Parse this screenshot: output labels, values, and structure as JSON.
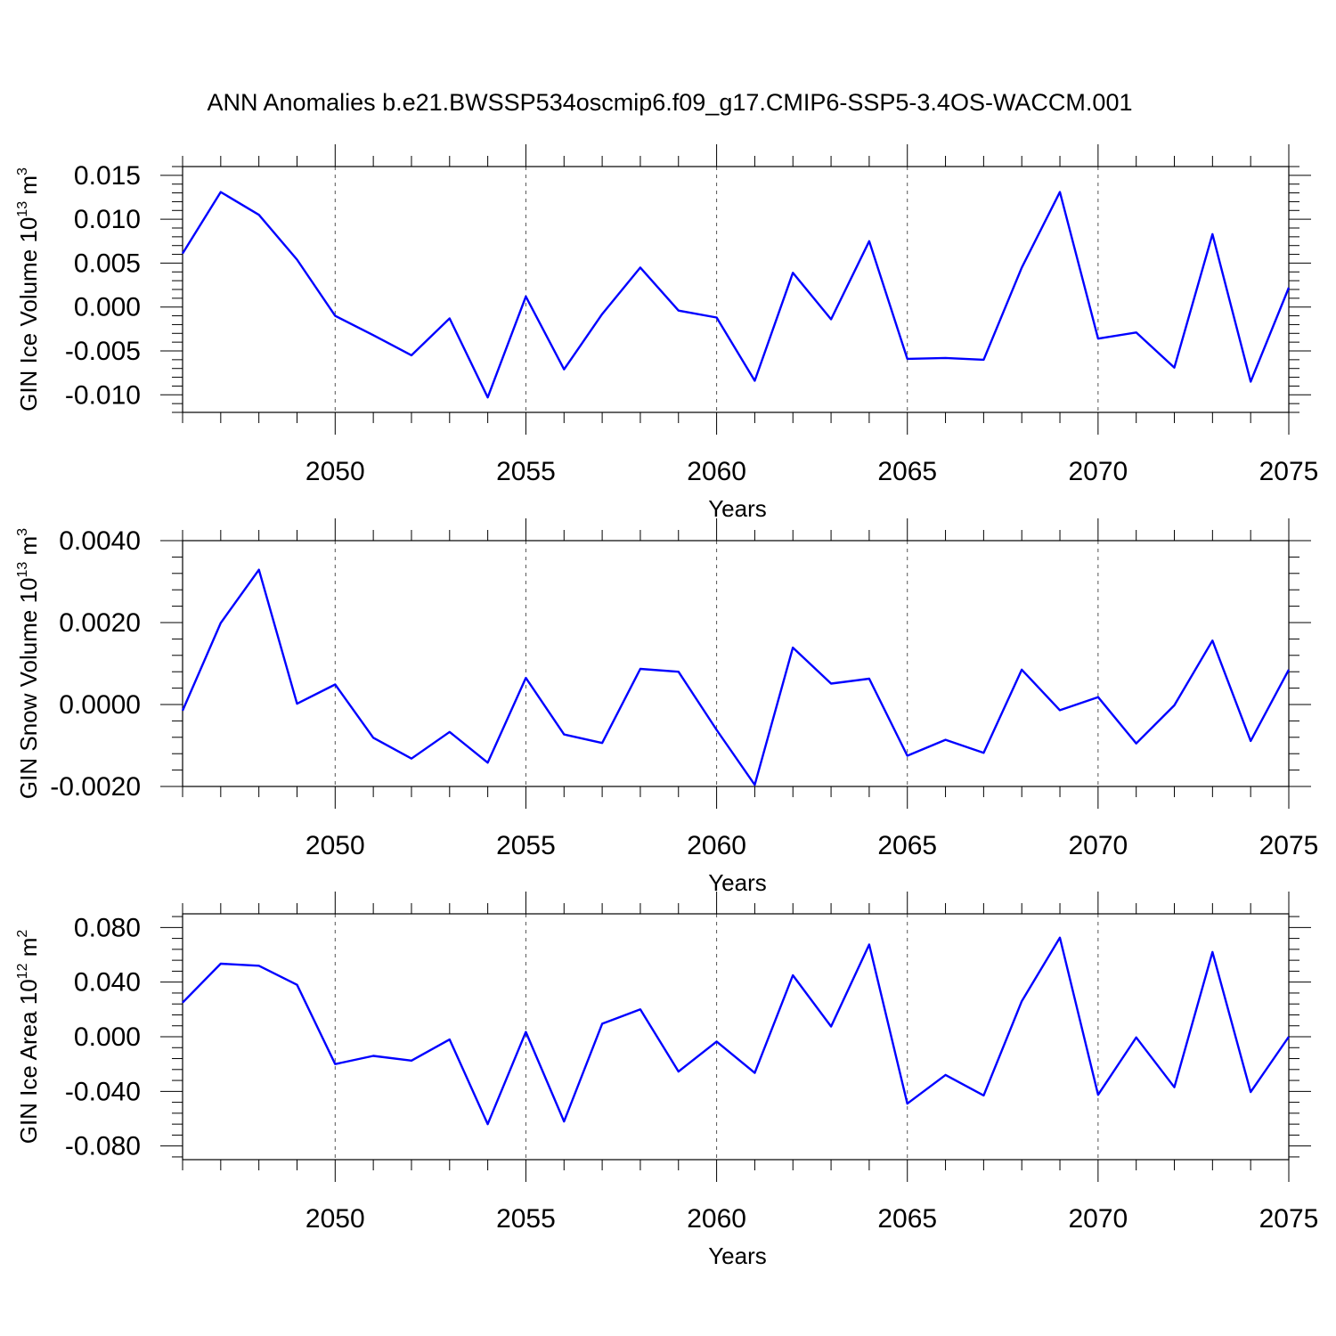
{
  "title": "ANN Anomalies b.e21.BWSSP534oscmip6.f09_g17.CMIP6-SSP5-3.4OS-WACCM.001",
  "line_color": "#0000ff",
  "chart_data": [
    {
      "type": "line",
      "xlabel": "Years",
      "ylabel": {
        "main": "GIN Ice Volume 10",
        "exp": "13",
        "unit": " m",
        "unit_exp": "3"
      },
      "xlim": [
        2046,
        2075
      ],
      "ylim": [
        -0.012,
        0.016
      ],
      "x_ticks": [
        2050,
        2055,
        2060,
        2065,
        2070,
        2075
      ],
      "y_ticks": [
        -0.01,
        -0.005,
        0.0,
        0.005,
        0.01,
        0.015
      ],
      "y_tick_labels": [
        "-0.010",
        "-0.005",
        "0.000",
        "0.005",
        "0.010",
        "0.015"
      ],
      "y_minor_step": 0.001,
      "grid": "vertical dashed at major x ticks",
      "x": [
        2046,
        2047,
        2048,
        2049,
        2050,
        2051,
        2052,
        2053,
        2054,
        2055,
        2056,
        2057,
        2058,
        2059,
        2060,
        2061,
        2062,
        2063,
        2064,
        2065,
        2066,
        2067,
        2068,
        2069,
        2070,
        2071,
        2072,
        2073,
        2074,
        2075
      ],
      "values": [
        0.0061,
        0.0131,
        0.0105,
        0.0054,
        -0.001,
        -0.0032,
        -0.0055,
        -0.0013,
        -0.0103,
        0.0012,
        -0.0071,
        -0.0008,
        0.0045,
        -0.0004,
        -0.0012,
        -0.0084,
        0.0039,
        -0.0014,
        0.0075,
        -0.0059,
        -0.0058,
        -0.006,
        0.0045,
        0.0131,
        -0.0036,
        -0.0029,
        -0.0069,
        0.0083,
        -0.0085,
        0.0022
      ]
    },
    {
      "type": "line",
      "xlabel": "Years",
      "ylabel": {
        "main": "GIN Snow Volume 10",
        "exp": "13",
        "unit": " m",
        "unit_exp": "3"
      },
      "xlim": [
        2046,
        2075
      ],
      "ylim": [
        -0.002,
        0.004
      ],
      "x_ticks": [
        2050,
        2055,
        2060,
        2065,
        2070,
        2075
      ],
      "y_ticks": [
        -0.002,
        0.0,
        0.002,
        0.004
      ],
      "y_tick_labels": [
        "-0.0020",
        "0.0000",
        "0.0020",
        "0.0040"
      ],
      "y_minor_step": 0.0004,
      "grid": "vertical dashed at major x ticks",
      "x": [
        2046,
        2047,
        2048,
        2049,
        2050,
        2051,
        2052,
        2053,
        2054,
        2055,
        2056,
        2057,
        2058,
        2059,
        2060,
        2061,
        2062,
        2063,
        2064,
        2065,
        2066,
        2067,
        2068,
        2069,
        2070,
        2071,
        2072,
        2073,
        2074,
        2075
      ],
      "values": [
        -0.00015,
        0.00199,
        0.00329,
        2e-05,
        0.00049,
        -0.00081,
        -0.00132,
        -0.00067,
        -0.00142,
        0.00065,
        -0.00073,
        -0.00094,
        0.00087,
        0.0008,
        -0.00062,
        -0.00196,
        0.00139,
        0.00051,
        0.00063,
        -0.00125,
        -0.00086,
        -0.00118,
        0.00085,
        -0.00014,
        0.00018,
        -0.00095,
        -2e-05,
        0.00156,
        -0.00089,
        0.00085
      ]
    },
    {
      "type": "line",
      "xlabel": "Years",
      "ylabel": {
        "main": "GIN Ice Area 10",
        "exp": "12",
        "unit": " m",
        "unit_exp": "2"
      },
      "xlim": [
        2046,
        2075
      ],
      "ylim": [
        -0.09,
        0.09
      ],
      "x_ticks": [
        2050,
        2055,
        2060,
        2065,
        2070,
        2075
      ],
      "y_ticks": [
        -0.08,
        -0.04,
        0.0,
        0.04,
        0.08
      ],
      "y_tick_labels": [
        "-0.080",
        "-0.040",
        "0.000",
        "0.040",
        "0.080"
      ],
      "y_minor_step": 0.008,
      "grid": "vertical dashed at major x ticks",
      "x": [
        2046,
        2047,
        2048,
        2049,
        2050,
        2051,
        2052,
        2053,
        2054,
        2055,
        2056,
        2057,
        2058,
        2059,
        2060,
        2061,
        2062,
        2063,
        2064,
        2065,
        2066,
        2067,
        2068,
        2069,
        2070,
        2071,
        2072,
        2073,
        2074,
        2075
      ],
      "values": [
        0.025,
        0.0535,
        0.052,
        0.038,
        -0.02,
        -0.014,
        -0.0175,
        -0.002,
        -0.064,
        0.0035,
        -0.062,
        0.0095,
        0.02,
        -0.0255,
        -0.0035,
        -0.0265,
        0.045,
        0.0075,
        0.0675,
        -0.049,
        -0.028,
        -0.043,
        0.026,
        0.0725,
        -0.0425,
        -0.0005,
        -0.037,
        0.062,
        -0.0405,
        0.0
      ]
    }
  ]
}
